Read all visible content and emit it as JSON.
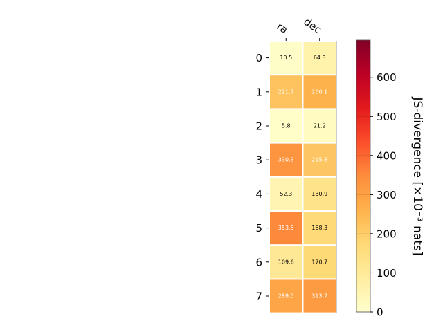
{
  "chart_data": {
    "type": "heatmap",
    "columns": [
      "ra",
      "dec"
    ],
    "rows": [
      "0",
      "1",
      "2",
      "3",
      "4",
      "5",
      "6",
      "7"
    ],
    "values": [
      [
        10.5,
        64.3
      ],
      [
        221.7,
        260.1
      ],
      [
        5.8,
        21.2
      ],
      [
        330.3,
        215.8
      ],
      [
        52.3,
        130.9
      ],
      [
        353.5,
        168.3
      ],
      [
        109.6,
        170.7
      ],
      [
        289.5,
        313.7
      ]
    ],
    "cell_labels": [
      [
        "10.5",
        "64.3"
      ],
      [
        "221.7",
        "260.1"
      ],
      [
        "5.8",
        "21.2"
      ],
      [
        "330.3",
        "215.8"
      ],
      [
        "52.3",
        "130.9"
      ],
      [
        "353.5",
        "168.3"
      ],
      [
        "109.6",
        "170.7"
      ],
      [
        "289.5",
        "313.7"
      ]
    ],
    "colorbar": {
      "label": "JS-divergence [×10⁻³ nats]",
      "range": [
        0,
        695
      ],
      "ticks": [
        "0",
        "100",
        "200",
        "300",
        "400",
        "500",
        "600"
      ],
      "tick_values": [
        0,
        100,
        200,
        300,
        400,
        500,
        600
      ],
      "colormap": "YlOrRd",
      "colors": [
        "#ffffcc",
        "#ffeda0",
        "#fed976",
        "#feb24c",
        "#fd8d3c",
        "#fc4e2a",
        "#e31a1c",
        "#bd0026",
        "#800026"
      ]
    }
  }
}
